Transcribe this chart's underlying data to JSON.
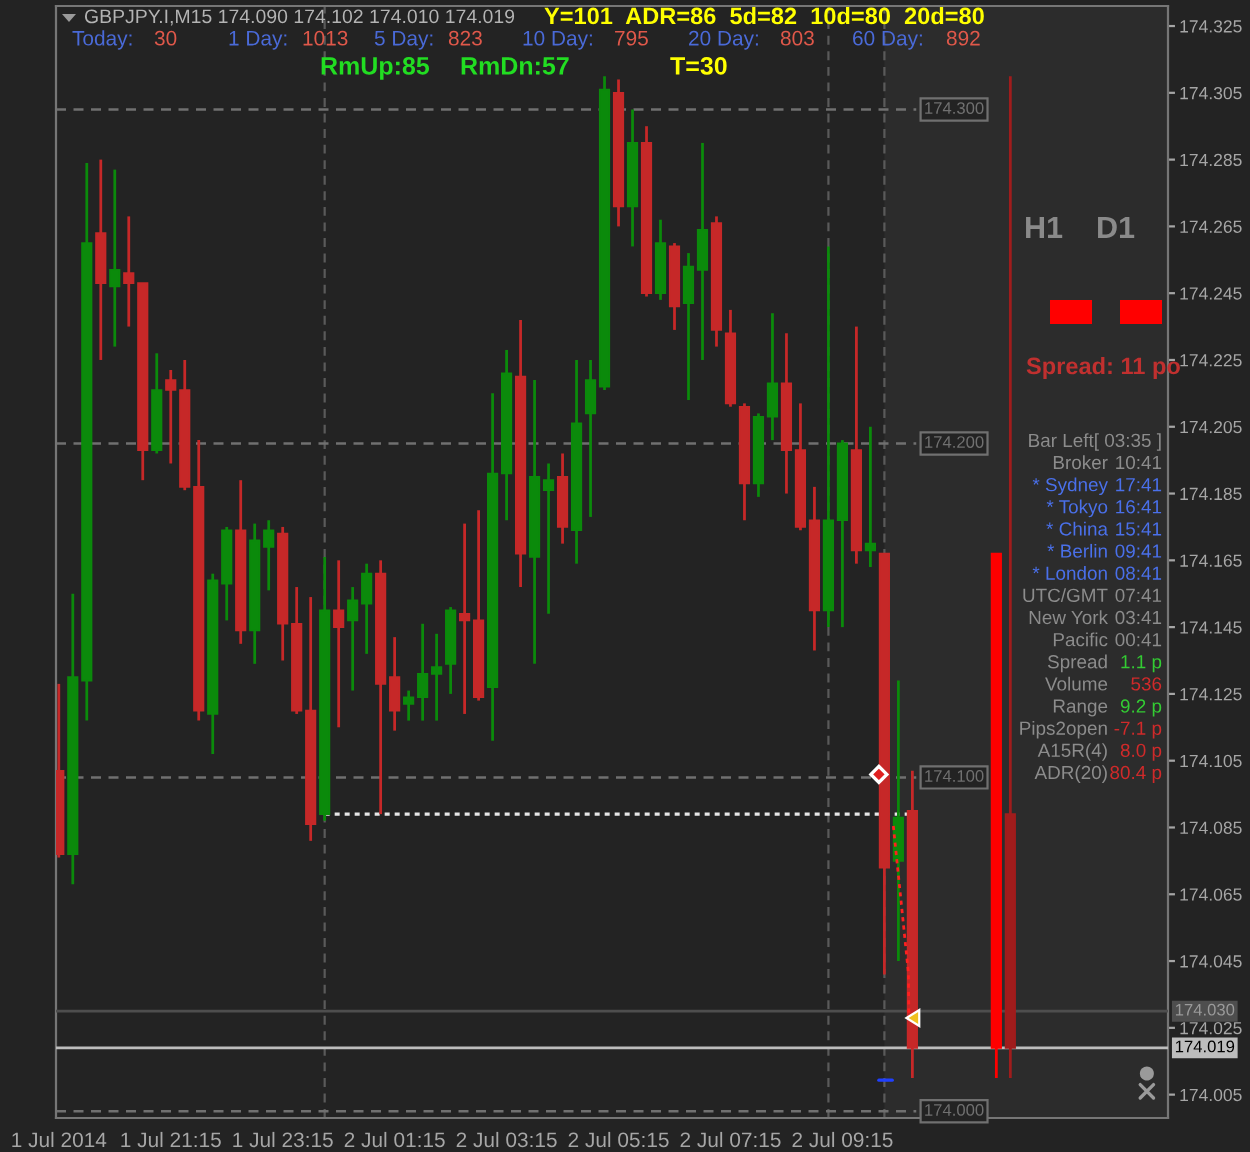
{
  "chart_data": {
    "type": "candlestick",
    "title": "GBPJPY.I,M15 174.090 174.102 174.010 174.019",
    "series": [
      {
        "x": [
          "2014-07-01T19:15",
          "2014-07-01T19:30",
          "2014-07-01T19:45",
          "2014-07-01T20:00",
          "2014-07-01T20:15",
          "2014-07-01T20:30",
          "2014-07-01T20:45",
          "2014-07-01T21:00",
          "2014-07-01T21:15",
          "2014-07-01T21:30",
          "2014-07-01T21:45",
          "2014-07-01T22:00",
          "2014-07-01T22:15",
          "2014-07-01T22:30",
          "2014-07-01T22:45",
          "2014-07-01T23:00",
          "2014-07-01T23:15",
          "2014-07-01T23:30",
          "2014-07-01T23:45",
          "2014-07-02T00:00",
          "2014-07-02T00:15",
          "2014-07-02T00:30",
          "2014-07-02T00:45",
          "2014-07-02T01:00",
          "2014-07-02T01:15",
          "2014-07-02T01:30",
          "2014-07-02T01:45",
          "2014-07-02T02:00",
          "2014-07-02T02:15",
          "2014-07-02T02:30",
          "2014-07-02T02:45",
          "2014-07-02T03:00",
          "2014-07-02T03:15",
          "2014-07-02T03:30",
          "2014-07-02T03:45",
          "2014-07-02T04:00",
          "2014-07-02T04:15",
          "2014-07-02T04:30",
          "2014-07-02T04:45",
          "2014-07-02T05:00",
          "2014-07-02T05:15",
          "2014-07-02T05:30",
          "2014-07-02T05:45",
          "2014-07-02T06:00",
          "2014-07-02T06:15",
          "2014-07-02T06:30",
          "2014-07-02T06:45",
          "2014-07-02T07:00",
          "2014-07-02T07:15",
          "2014-07-02T07:30",
          "2014-07-02T07:45",
          "2014-07-02T08:00",
          "2014-07-02T08:15",
          "2014-07-02T08:30",
          "2014-07-02T08:45",
          "2014-07-02T09:00",
          "2014-07-02T09:15",
          "2014-07-02T09:30",
          "2014-07-02T09:45",
          "2014-07-02T10:00",
          "2014-07-02T10:15",
          "2014-07-02T10:30"
        ],
        "ohlc": [
          [
            174.102,
            174.128,
            174.076,
            174.077
          ],
          [
            174.077,
            174.155,
            174.068,
            174.13
          ],
          [
            174.129,
            174.284,
            174.117,
            174.26
          ],
          [
            174.263,
            174.285,
            174.225,
            174.248
          ],
          [
            174.247,
            174.282,
            174.229,
            174.252
          ],
          [
            174.251,
            174.268,
            174.235,
            174.248
          ],
          [
            174.248,
            174.248,
            174.189,
            174.198
          ],
          [
            174.198,
            174.227,
            174.197,
            174.216
          ],
          [
            174.219,
            174.222,
            174.194,
            174.216
          ],
          [
            174.216,
            174.225,
            174.186,
            174.187
          ],
          [
            174.187,
            174.201,
            174.117,
            174.12
          ],
          [
            174.119,
            174.161,
            174.107,
            174.159
          ],
          [
            174.158,
            174.175,
            174.147,
            174.174
          ],
          [
            174.174,
            174.189,
            174.14,
            174.144
          ],
          [
            174.144,
            174.176,
            174.134,
            174.171
          ],
          [
            174.169,
            174.177,
            174.156,
            174.174
          ],
          [
            174.173,
            174.175,
            174.135,
            174.146
          ],
          [
            174.146,
            174.157,
            174.119,
            174.12
          ],
          [
            174.12,
            174.154,
            174.081,
            174.086
          ],
          [
            174.089,
            174.166,
            174.087,
            174.15
          ],
          [
            174.15,
            174.165,
            174.115,
            174.145
          ],
          [
            174.147,
            174.157,
            174.126,
            174.153
          ],
          [
            174.152,
            174.164,
            174.137,
            174.161
          ],
          [
            174.161,
            174.165,
            174.089,
            174.128
          ],
          [
            174.13,
            174.142,
            174.114,
            174.12
          ],
          [
            174.122,
            174.126,
            174.117,
            174.124
          ],
          [
            174.124,
            174.146,
            174.117,
            174.131
          ],
          [
            174.131,
            174.143,
            174.117,
            174.133
          ],
          [
            174.134,
            174.151,
            174.125,
            174.15
          ],
          [
            174.149,
            174.176,
            174.119,
            174.147
          ],
          [
            174.147,
            174.18,
            174.123,
            174.124
          ],
          [
            174.127,
            174.215,
            174.111,
            174.191
          ],
          [
            174.191,
            174.228,
            174.177,
            174.221
          ],
          [
            174.22,
            174.237,
            174.157,
            174.167
          ],
          [
            174.166,
            174.219,
            174.134,
            174.19
          ],
          [
            174.186,
            174.194,
            174.149,
            174.189
          ],
          [
            174.19,
            174.197,
            174.17,
            174.175
          ],
          [
            174.174,
            174.225,
            174.164,
            174.206
          ],
          [
            174.209,
            174.225,
            174.178,
            174.219
          ],
          [
            174.217,
            174.31,
            174.216,
            174.306
          ],
          [
            174.305,
            174.309,
            174.265,
            174.271
          ],
          [
            174.271,
            174.3,
            174.259,
            174.29
          ],
          [
            174.29,
            174.295,
            174.244,
            174.245
          ],
          [
            174.245,
            174.267,
            174.243,
            174.26
          ],
          [
            174.259,
            174.26,
            174.234,
            174.241
          ],
          [
            174.242,
            174.257,
            174.213,
            174.253
          ],
          [
            174.252,
            174.29,
            174.225,
            174.264
          ],
          [
            174.266,
            174.268,
            174.229,
            174.234
          ],
          [
            174.233,
            174.24,
            174.211,
            174.212
          ],
          [
            174.211,
            174.212,
            174.177,
            174.188
          ],
          [
            174.188,
            174.209,
            174.184,
            174.208
          ],
          [
            174.208,
            174.239,
            174.201,
            174.218
          ],
          [
            174.218,
            174.233,
            174.185,
            174.198
          ],
          [
            174.198,
            174.212,
            174.174,
            174.175
          ],
          [
            174.177,
            174.187,
            174.138,
            174.15
          ],
          [
            174.15,
            174.259,
            174.145,
            174.177
          ],
          [
            174.177,
            174.201,
            174.145,
            174.2
          ],
          [
            174.198,
            174.235,
            174.164,
            174.168
          ],
          [
            174.168,
            174.205,
            174.163,
            174.17
          ],
          [
            174.167,
            174.167,
            174.041,
            174.073
          ],
          [
            174.075,
            174.129,
            174.045,
            174.088
          ],
          [
            174.09,
            174.102,
            174.01,
            174.019
          ]
        ],
        "colors": [
          "#c62828",
          "#0b8a0b",
          "#0b8a0b",
          "#c62828",
          "#0b8a0b",
          "#c62828",
          "#c62828",
          "#0b8a0b",
          "#c62828",
          "#c62828",
          "#c62828",
          "#0b8a0b",
          "#0b8a0b",
          "#c62828",
          "#0b8a0b",
          "#0b8a0b",
          "#c62828",
          "#c62828",
          "#c62828",
          "#0b8a0b",
          "#c62828",
          "#0b8a0b",
          "#0b8a0b",
          "#c62828",
          "#c62828",
          "#0b8a0b",
          "#0b8a0b",
          "#0b8a0b",
          "#0b8a0b",
          "#c62828",
          "#c62828",
          "#0b8a0b",
          "#0b8a0b",
          "#c62828",
          "#0b8a0b",
          "#0b8a0b",
          "#c62828",
          "#0b8a0b",
          "#0b8a0b",
          "#0b8a0b",
          "#c62828",
          "#0b8a0b",
          "#c62828",
          "#0b8a0b",
          "#c62828",
          "#0b8a0b",
          "#0b8a0b",
          "#c62828",
          "#c62828",
          "#c62828",
          "#0b8a0b",
          "#0b8a0b",
          "#c62828",
          "#c62828",
          "#c62828",
          "#0b8a0b",
          "#0b8a0b",
          "#c62828",
          "#0b8a0b",
          "#c62828",
          "#0b8a0b",
          "#c62828"
        ]
      },
      {
        "x": [
          "2014-07-02T12:00",
          "2014-07-02T12:15"
        ],
        "ohlc": [
          [
            174.167,
            174.167,
            174.01,
            174.019
          ],
          [
            174.089,
            174.31,
            174.01,
            174.019
          ]
        ],
        "colors": [
          "#ff0000",
          "#a01c1c"
        ]
      },
      {
        "type": "line",
        "x": [
          "2014-07-02T00:00",
          "2014-07-02T10:30"
        ],
        "values": [
          174.089,
          174.089
        ],
        "color": "#e6e6e6",
        "line_style": "dotted"
      }
    ],
    "xlim": [
      "2014-07-01T19:12",
      "2014-07-02T15:04"
    ],
    "xticks": [
      {
        "value": "2014-07-01T19:15",
        "label": "1 Jul 2014"
      },
      {
        "value": "2014-07-01T21:15",
        "label": "1 Jul 21:15"
      },
      {
        "value": "2014-07-01T23:15",
        "label": "1 Jul 23:15"
      },
      {
        "value": "2014-07-02T01:15",
        "label": "2 Jul 01:15"
      },
      {
        "value": "2014-07-02T03:15",
        "label": "2 Jul 03:15"
      },
      {
        "value": "2014-07-02T05:15",
        "label": "2 Jul 05:15"
      },
      {
        "value": "2014-07-02T07:15",
        "label": "2 Jul 07:15"
      },
      {
        "value": "2014-07-02T09:15",
        "label": "2 Jul 09:15"
      }
    ],
    "ylim": [
      173.998,
      174.331
    ],
    "yticks": [
      174.005,
      174.025,
      174.045,
      174.065,
      174.085,
      174.105,
      174.125,
      174.145,
      174.165,
      174.185,
      174.205,
      174.225,
      174.245,
      174.265,
      174.285,
      174.305,
      174.325
    ],
    "ref_lines": [
      {
        "axis": "y",
        "value": 174.3,
        "label": "174.300",
        "color": "#707070",
        "line_style": "dashed"
      },
      {
        "axis": "y",
        "value": 174.2,
        "label": "174.200",
        "color": "#707070",
        "line_style": "dashed"
      },
      {
        "axis": "y",
        "value": 174.1,
        "label": "174.100",
        "color": "#707070",
        "line_style": "dashed"
      },
      {
        "axis": "y",
        "value": 174.0,
        "label": "174.000",
        "color": "#707070",
        "line_style": "dashed"
      },
      {
        "axis": "y",
        "value": 174.03,
        "label": "174.030",
        "color": "#4e4e4e",
        "line_style": "solid"
      },
      {
        "axis": "y",
        "value": 174.019,
        "label": "174.019",
        "color": "#bdbdbd",
        "line_style": "solid"
      },
      {
        "axis": "x",
        "value": "2014-07-02T00:00",
        "color": "#5a5a5a",
        "line_style": "dashed"
      },
      {
        "axis": "x",
        "value": "2014-07-02T09:00",
        "color": "#5a5a5a",
        "line_style": "dashed"
      },
      {
        "axis": "x",
        "value": "2014-07-02T10:00",
        "color": "#5a5a5a",
        "line_style": "dashed"
      }
    ],
    "bands": [
      {
        "axis": "x",
        "from": "2014-07-02T10:00",
        "to": "2014-07-02T15:04",
        "color": "#2c2c2c"
      }
    ],
    "annotations": [
      "Y=101  ADR=86  5d=82  10d=80  20d=80",
      "Today:",
      "30",
      "1 Day:",
      "1013",
      "5 Day:",
      "823",
      "10 Day:",
      "795",
      "20 Day:",
      "803",
      "60 Day:",
      "892",
      "RmUp:85",
      "RmDn:57",
      "T=30",
      "H1",
      "D1",
      "Spread: 11 po",
      "Bar Left[ 03:35 ]",
      "Broker",
      "10:41",
      "* Sydney",
      "17:41",
      "* Tokyo",
      "16:41",
      "* China",
      "15:41",
      "* Berlin",
      "09:41",
      "* London",
      "08:41",
      "UTC/GMT",
      "07:41",
      "New York",
      "03:41",
      "Pacific",
      "00:41",
      "Spread",
      "1.1 p",
      "Volume",
      "536",
      "Range",
      "9.2 p",
      "Pips2open",
      "-7.1 p",
      "A15R(4)",
      "8.0 p",
      "ADR(20)",
      "80.4 p"
    ]
  }
}
